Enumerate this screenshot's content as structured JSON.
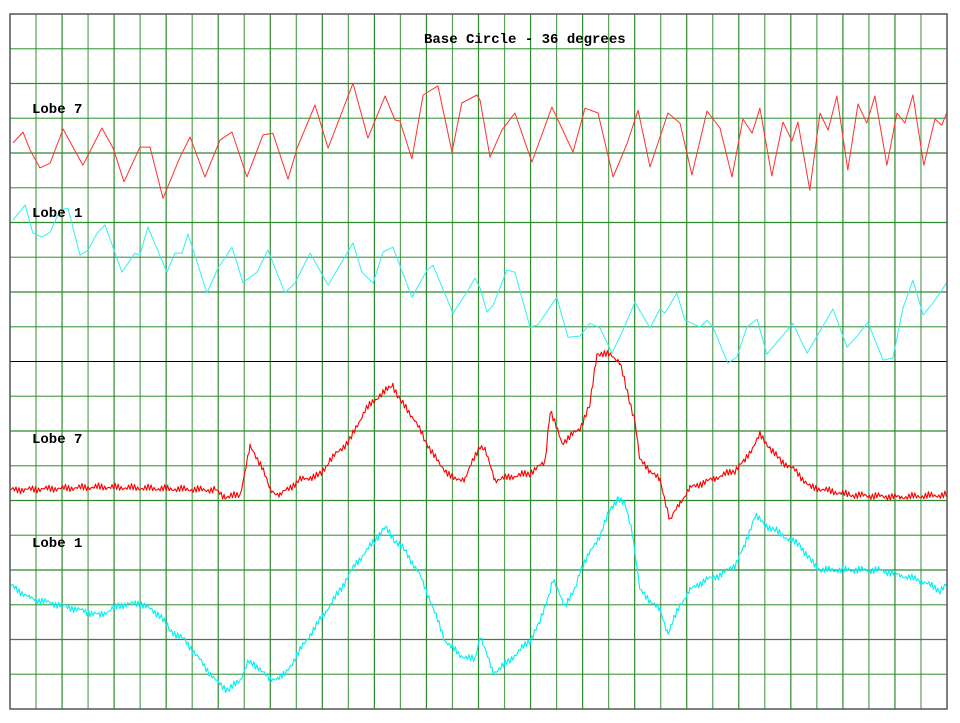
{
  "chart_data": {
    "type": "line",
    "title": "Base Circle - 36 degrees",
    "xlabel": "",
    "ylabel": "",
    "xlim": [
      0,
      36
    ],
    "ylim": [
      0,
      20
    ],
    "grid": true,
    "grid_color": "#2e8b2e",
    "divider_color": "#000000",
    "series": [
      {
        "name": "Lobe 7",
        "color": "#ff3030",
        "points": [
          [
            0.12,
            16.29
          ],
          [
            0.5,
            16.6
          ],
          [
            0.77,
            16.09
          ],
          [
            1.15,
            15.57
          ],
          [
            1.54,
            15.71
          ],
          [
            2.04,
            16.69
          ],
          [
            2.8,
            15.65
          ],
          [
            3.53,
            16.72
          ],
          [
            3.96,
            16.14
          ],
          [
            4.38,
            15.17
          ],
          [
            4.99,
            16.17
          ],
          [
            5.38,
            16.17
          ],
          [
            5.88,
            14.7
          ],
          [
            6.53,
            15.88
          ],
          [
            6.92,
            16.46
          ],
          [
            7.49,
            15.31
          ],
          [
            8.07,
            16.37
          ],
          [
            8.53,
            16.6
          ],
          [
            9.1,
            15.31
          ],
          [
            9.72,
            16.52
          ],
          [
            10.1,
            16.57
          ],
          [
            10.68,
            15.25
          ],
          [
            11.03,
            16.14
          ],
          [
            11.72,
            17.38
          ],
          [
            12.22,
            16.14
          ],
          [
            13.18,
            18.01
          ],
          [
            13.75,
            16.43
          ],
          [
            14.41,
            17.64
          ],
          [
            14.79,
            16.95
          ],
          [
            14.98,
            16.92
          ],
          [
            15.44,
            15.83
          ],
          [
            15.87,
            17.67
          ],
          [
            16.44,
            17.93
          ],
          [
            16.98,
            16.03
          ],
          [
            17.36,
            17.44
          ],
          [
            17.94,
            17.67
          ],
          [
            18.06,
            17.52
          ],
          [
            18.44,
            15.88
          ],
          [
            18.9,
            16.66
          ],
          [
            19.4,
            17.15
          ],
          [
            20.05,
            15.74
          ],
          [
            20.82,
            17.32
          ],
          [
            21.63,
            16.03
          ],
          [
            22.09,
            17.29
          ],
          [
            22.59,
            17.15
          ],
          [
            23.17,
            15.31
          ],
          [
            23.7,
            16.26
          ],
          [
            24.13,
            17.23
          ],
          [
            24.59,
            15.6
          ],
          [
            25.28,
            17.15
          ],
          [
            25.74,
            16.86
          ],
          [
            26.2,
            15.37
          ],
          [
            26.78,
            17.21
          ],
          [
            27.28,
            16.72
          ],
          [
            27.74,
            15.31
          ],
          [
            28.16,
            16.98
          ],
          [
            28.51,
            16.57
          ],
          [
            28.81,
            17.29
          ],
          [
            29.27,
            15.34
          ],
          [
            29.7,
            16.89
          ],
          [
            30.04,
            16.35
          ],
          [
            30.27,
            16.89
          ],
          [
            30.73,
            14.93
          ],
          [
            31.12,
            17.15
          ],
          [
            31.43,
            16.66
          ],
          [
            31.77,
            17.64
          ],
          [
            32.19,
            15.51
          ],
          [
            32.58,
            17.41
          ],
          [
            32.92,
            16.86
          ],
          [
            33.23,
            17.64
          ],
          [
            33.69,
            15.65
          ],
          [
            34.08,
            17.15
          ],
          [
            34.38,
            16.86
          ],
          [
            34.69,
            17.67
          ],
          [
            35.11,
            15.65
          ],
          [
            35.54,
            16.98
          ],
          [
            35.8,
            16.8
          ],
          [
            36.0,
            17.18
          ]
        ]
      },
      {
        "name": "Lobe 1",
        "color": "#30f0f0",
        "points": [
          [
            0.12,
            14.07
          ],
          [
            0.58,
            14.5
          ],
          [
            0.88,
            13.69
          ],
          [
            1.23,
            13.58
          ],
          [
            1.54,
            13.72
          ],
          [
            1.92,
            14.36
          ],
          [
            2.23,
            14.41
          ],
          [
            2.69,
            13.06
          ],
          [
            3.0,
            13.21
          ],
          [
            3.34,
            13.69
          ],
          [
            3.65,
            13.93
          ],
          [
            4.3,
            12.57
          ],
          [
            4.8,
            13.12
          ],
          [
            4.99,
            13.06
          ],
          [
            5.3,
            13.87
          ],
          [
            6.03,
            12.57
          ],
          [
            6.34,
            13.12
          ],
          [
            6.61,
            13.12
          ],
          [
            6.84,
            13.67
          ],
          [
            7.57,
            11.97
          ],
          [
            7.99,
            12.69
          ],
          [
            8.53,
            13.29
          ],
          [
            8.95,
            12.28
          ],
          [
            9.49,
            12.57
          ],
          [
            9.91,
            13.21
          ],
          [
            10.56,
            11.97
          ],
          [
            10.95,
            12.26
          ],
          [
            11.53,
            13.12
          ],
          [
            12.22,
            12.2
          ],
          [
            13.18,
            13.41
          ],
          [
            13.52,
            12.57
          ],
          [
            13.95,
            12.26
          ],
          [
            14.33,
            13.15
          ],
          [
            14.71,
            13.29
          ],
          [
            15.44,
            11.85
          ],
          [
            16.02,
            12.63
          ],
          [
            16.25,
            12.77
          ],
          [
            17.02,
            11.39
          ],
          [
            17.56,
            12.0
          ],
          [
            17.86,
            12.4
          ],
          [
            18.06,
            12.11
          ],
          [
            18.33,
            11.42
          ],
          [
            18.56,
            11.62
          ],
          [
            19.09,
            12.63
          ],
          [
            19.4,
            12.57
          ],
          [
            19.98,
            10.99
          ],
          [
            20.28,
            11.05
          ],
          [
            21.01,
            11.85
          ],
          [
            21.44,
            10.7
          ],
          [
            21.9,
            10.73
          ],
          [
            22.28,
            11.1
          ],
          [
            22.67,
            10.96
          ],
          [
            23.13,
            10.24
          ],
          [
            23.55,
            10.9
          ],
          [
            24.01,
            11.71
          ],
          [
            24.59,
            10.96
          ],
          [
            24.97,
            11.51
          ],
          [
            25.16,
            11.39
          ],
          [
            25.62,
            11.97
          ],
          [
            25.93,
            11.19
          ],
          [
            26.51,
            10.99
          ],
          [
            26.78,
            11.19
          ],
          [
            27.01,
            10.99
          ],
          [
            27.58,
            9.95
          ],
          [
            27.93,
            10.13
          ],
          [
            28.31,
            10.99
          ],
          [
            28.7,
            11.22
          ],
          [
            29.08,
            10.21
          ],
          [
            30.08,
            11.1
          ],
          [
            30.62,
            10.24
          ],
          [
            31.62,
            11.51
          ],
          [
            32.16,
            10.41
          ],
          [
            32.58,
            10.76
          ],
          [
            32.96,
            11.13
          ],
          [
            33.54,
            10.04
          ],
          [
            33.92,
            10.1
          ],
          [
            34.31,
            11.54
          ],
          [
            34.69,
            12.34
          ],
          [
            35.08,
            11.34
          ],
          [
            35.46,
            11.68
          ],
          [
            36.0,
            12.28
          ]
        ]
      },
      {
        "name": "Lobe 7",
        "color": "#ff0000",
        "points": [
          [
            0,
            6.3
          ],
          [
            3.46,
            6.39
          ],
          [
            7.88,
            6.3
          ],
          [
            8.26,
            6.1
          ],
          [
            8.84,
            6.16
          ],
          [
            9.22,
            7.54
          ],
          [
            9.68,
            6.99
          ],
          [
            9.99,
            6.3
          ],
          [
            10.37,
            6.16
          ],
          [
            11.14,
            6.59
          ],
          [
            11.91,
            6.73
          ],
          [
            12.29,
            7.16
          ],
          [
            13.06,
            7.74
          ],
          [
            13.64,
            8.6
          ],
          [
            14.21,
            9.03
          ],
          [
            14.71,
            9.32
          ],
          [
            14.98,
            8.89
          ],
          [
            15.56,
            8.31
          ],
          [
            15.94,
            7.74
          ],
          [
            16.52,
            7.02
          ],
          [
            17.1,
            6.59
          ],
          [
            17.48,
            6.64
          ],
          [
            18.06,
            7.59
          ],
          [
            18.25,
            7.45
          ],
          [
            18.63,
            6.59
          ],
          [
            19.98,
            6.79
          ],
          [
            20.55,
            7.1
          ],
          [
            20.75,
            8.6
          ],
          [
            21.21,
            7.65
          ],
          [
            21.9,
            8.08
          ],
          [
            22.28,
            8.75
          ],
          [
            22.55,
            10.24
          ],
          [
            23.13,
            10.18
          ],
          [
            23.43,
            9.98
          ],
          [
            23.74,
            9.03
          ],
          [
            24.01,
            8.31
          ],
          [
            24.2,
            7.16
          ],
          [
            24.59,
            6.87
          ],
          [
            24.97,
            6.59
          ],
          [
            25.36,
            5.44
          ],
          [
            25.74,
            5.93
          ],
          [
            26.12,
            6.36
          ],
          [
            27.08,
            6.64
          ],
          [
            27.85,
            6.87
          ],
          [
            28.24,
            7.16
          ],
          [
            28.81,
            7.88
          ],
          [
            29.2,
            7.51
          ],
          [
            29.58,
            7.16
          ],
          [
            30.16,
            6.87
          ],
          [
            30.73,
            6.39
          ],
          [
            32.27,
            6.16
          ],
          [
            34.19,
            6.1
          ],
          [
            36.0,
            6.16
          ]
        ]
      },
      {
        "name": "Lobe 1",
        "color": "#00f0f0",
        "points": [
          [
            0,
            3.57
          ],
          [
            0.77,
            3.19
          ],
          [
            1.92,
            2.99
          ],
          [
            3.46,
            2.7
          ],
          [
            4.23,
            2.99
          ],
          [
            4.99,
            3.05
          ],
          [
            5.76,
            2.7
          ],
          [
            6.15,
            2.27
          ],
          [
            6.72,
            1.98
          ],
          [
            7.3,
            1.41
          ],
          [
            7.88,
            0.83
          ],
          [
            8.37,
            0.54
          ],
          [
            8.84,
            0.83
          ],
          [
            9.14,
            1.35
          ],
          [
            9.6,
            1.18
          ],
          [
            9.99,
            0.83
          ],
          [
            10.56,
            0.98
          ],
          [
            11.14,
            1.69
          ],
          [
            11.91,
            2.56
          ],
          [
            12.68,
            3.42
          ],
          [
            13.25,
            4.14
          ],
          [
            14.02,
            4.86
          ],
          [
            14.41,
            5.23
          ],
          [
            14.79,
            4.86
          ],
          [
            15.17,
            4.57
          ],
          [
            15.75,
            3.85
          ],
          [
            16.14,
            3.13
          ],
          [
            16.71,
            1.98
          ],
          [
            17.29,
            1.55
          ],
          [
            17.86,
            1.41
          ],
          [
            18.06,
            2.13
          ],
          [
            18.56,
            1.03
          ],
          [
            19.21,
            1.41
          ],
          [
            19.98,
            1.98
          ],
          [
            20.36,
            2.5
          ],
          [
            20.75,
            3.42
          ],
          [
            20.86,
            3.71
          ],
          [
            21.32,
            2.99
          ],
          [
            21.71,
            3.42
          ],
          [
            21.9,
            4.0
          ],
          [
            22.67,
            5.0
          ],
          [
            23.05,
            5.72
          ],
          [
            23.36,
            6.07
          ],
          [
            23.63,
            5.87
          ],
          [
            23.9,
            5.15
          ],
          [
            24.2,
            3.42
          ],
          [
            24.59,
            3.13
          ],
          [
            24.97,
            2.85
          ],
          [
            25.28,
            2.18
          ],
          [
            25.74,
            2.99
          ],
          [
            26.12,
            3.42
          ],
          [
            26.7,
            3.71
          ],
          [
            27.28,
            3.85
          ],
          [
            27.85,
            4.14
          ],
          [
            28.24,
            4.72
          ],
          [
            28.62,
            5.58
          ],
          [
            29.01,
            5.29
          ],
          [
            29.39,
            5.15
          ],
          [
            29.97,
            4.86
          ],
          [
            30.35,
            4.72
          ],
          [
            30.73,
            4.29
          ],
          [
            31.12,
            4.0
          ],
          [
            32.27,
            4.0
          ],
          [
            33.42,
            4.0
          ],
          [
            34.19,
            3.85
          ],
          [
            34.96,
            3.71
          ],
          [
            35.73,
            3.42
          ],
          [
            36.0,
            3.57
          ]
        ]
      }
    ]
  }
}
